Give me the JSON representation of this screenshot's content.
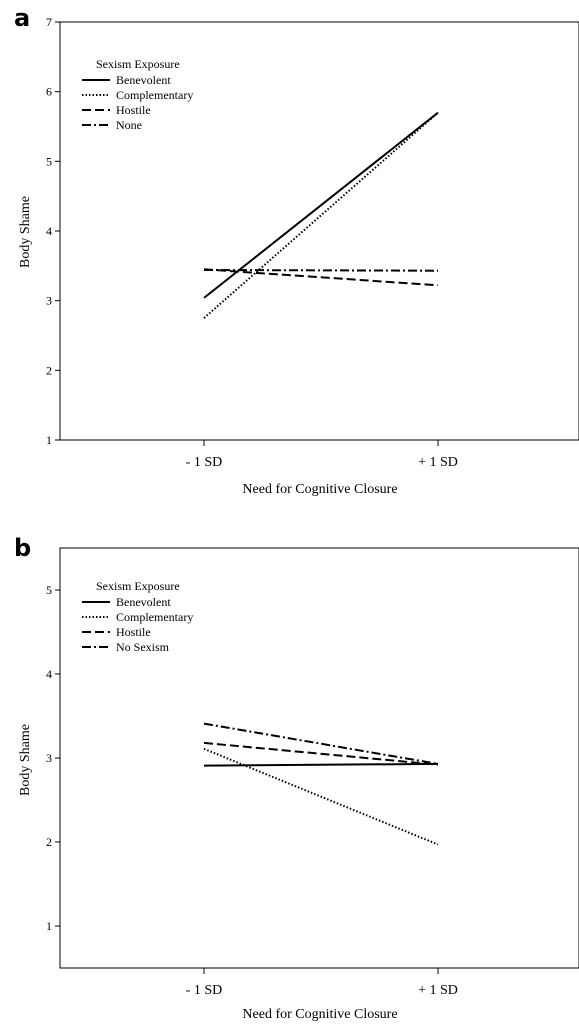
{
  "chart_data": [
    {
      "panel": "a",
      "type": "line",
      "categories": [
        "- 1 SD",
        "+ 1 SD"
      ],
      "xlabel": "Need for Cognitive Closure",
      "ylabel": "Body Shame",
      "ylim": [
        1,
        7
      ],
      "yticks": [
        1,
        2,
        3,
        4,
        5,
        6,
        7
      ],
      "grid": false,
      "legend": {
        "title": "Sexism Exposure",
        "position": "top-left",
        "entries": [
          "Benevolent",
          "Complementary",
          "Hostile",
          "None"
        ]
      },
      "series": [
        {
          "name": "Benevolent",
          "style": "solid",
          "values": [
            3.04,
            5.7
          ]
        },
        {
          "name": "Complementary",
          "style": "dotted",
          "values": [
            2.75,
            5.7
          ]
        },
        {
          "name": "Hostile",
          "style": "dashed",
          "values": [
            3.45,
            3.22
          ]
        },
        {
          "name": "None",
          "style": "dashdot",
          "values": [
            3.44,
            3.43
          ]
        }
      ]
    },
    {
      "panel": "b",
      "type": "line",
      "categories": [
        "- 1 SD",
        "+ 1 SD"
      ],
      "xlabel": "Need for Cognitive Closure",
      "ylabel": "Body Shame",
      "ylim": [
        0.5,
        5.5
      ],
      "yticks": [
        1,
        2,
        3,
        4,
        5
      ],
      "grid": false,
      "legend": {
        "title": "Sexism Exposure",
        "position": "top-left",
        "entries": [
          "Benevolent",
          "Complementary",
          "Hostile",
          "No Sexism"
        ]
      },
      "series": [
        {
          "name": "Benevolent",
          "style": "solid",
          "values": [
            2.91,
            2.93
          ]
        },
        {
          "name": "Complementary",
          "style": "dotted",
          "values": [
            3.11,
            1.97
          ]
        },
        {
          "name": "Hostile",
          "style": "dashed",
          "values": [
            3.18,
            2.92
          ]
        },
        {
          "name": "No Sexism",
          "style": "dashdot",
          "values": [
            3.41,
            2.93
          ]
        }
      ]
    }
  ]
}
